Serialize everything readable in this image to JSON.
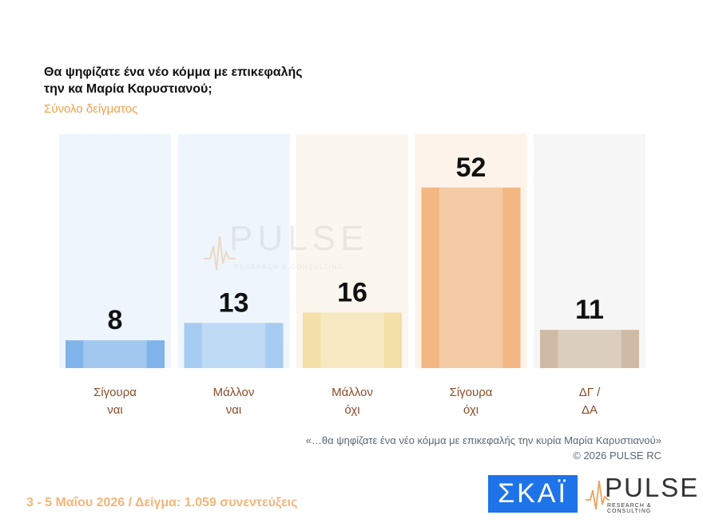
{
  "header": {
    "title_line1": "Θα ψηφίζατε ένα νέο κόμμα με επικεφαλής",
    "title_line2": "την κα Μαρία Καρυστιανού;",
    "subtitle": "Σύνολο δείγματος"
  },
  "chart_data": {
    "type": "bar",
    "categories": [
      [
        "Σίγουρα",
        "ναι"
      ],
      [
        "Μάλλον",
        "ναι"
      ],
      [
        "Μάλλον",
        "όχι"
      ],
      [
        "Σίγουρα",
        "όχι"
      ],
      [
        "ΔΓ /",
        "ΔΑ"
      ]
    ],
    "values": [
      8,
      13,
      16,
      52,
      11
    ],
    "colors": [
      "#7fb3ea",
      "#a7ccf2",
      "#f3dfa8",
      "#f2b783",
      "#cfbba5"
    ],
    "column_tints": [
      "#eef5fc",
      "#eef5fc",
      "#fbf6ee",
      "#fdf3ea",
      "#f6f6f6"
    ],
    "ylim": [
      0,
      60
    ],
    "grid": false,
    "legend": "none"
  },
  "watermark": {
    "brand": "PULSE",
    "tagline": "RESEARCH & CONSULTING"
  },
  "note": {
    "quote": "«…θα ψηφίζατε ένα νέο κόμμα με επικεφαλής την κυρία Μαρία Καρυστιανού»",
    "copyright": "©  2026  PULSE RC"
  },
  "footer": {
    "text": "3 - 5  Μαΐου 2026  /  Δείγμα:  1.059 συνεντεύξεις"
  },
  "logos": {
    "skai": "ΣΚΑΪ",
    "pulse": "PULSE",
    "pulse_tagline": "RESEARCH & CONSULTING",
    "brand_color": "#1e73e8",
    "accent_color": "#f0a04b"
  }
}
